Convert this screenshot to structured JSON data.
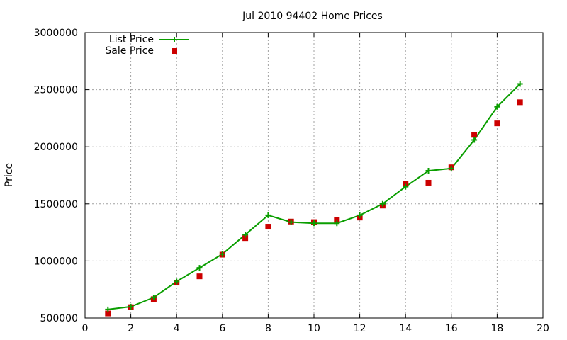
{
  "chart_data": {
    "type": "line",
    "title": "Jul 2010 94402 Home Prices",
    "xlabel": "",
    "ylabel": "Price",
    "xlim": [
      0,
      20
    ],
    "ylim": [
      500000,
      3000000
    ],
    "x_ticks": [
      0,
      2,
      4,
      6,
      8,
      10,
      12,
      14,
      16,
      18,
      20
    ],
    "y_ticks": [
      500000,
      1000000,
      1500000,
      2000000,
      2500000,
      3000000
    ],
    "grid": true,
    "legend_position": "top-left",
    "series": [
      {
        "name": "List Price",
        "color": "#0a9e00",
        "style": "line-with-plus-markers",
        "x": [
          1,
          2,
          3,
          4,
          5,
          6,
          7,
          8,
          9,
          10,
          11,
          12,
          13,
          14,
          15,
          16,
          17,
          18,
          19
        ],
        "values": [
          575000,
          600000,
          680000,
          820000,
          940000,
          1060000,
          1230000,
          1400000,
          1340000,
          1330000,
          1330000,
          1400000,
          1500000,
          1650000,
          1790000,
          1810000,
          2060000,
          2350000,
          2550000
        ]
      },
      {
        "name": "Sale Price",
        "color": "#cc0000",
        "style": "square-markers",
        "x": [
          1,
          2,
          3,
          4,
          5,
          6,
          7,
          8,
          9,
          10,
          11,
          12,
          13,
          14,
          15,
          16,
          17,
          18,
          19
        ],
        "values": [
          540000,
          595000,
          665000,
          810000,
          865000,
          1055000,
          1200000,
          1300000,
          1345000,
          1340000,
          1360000,
          1380000,
          1485000,
          1675000,
          1685000,
          1820000,
          2105000,
          2205000,
          2390000
        ]
      }
    ]
  }
}
